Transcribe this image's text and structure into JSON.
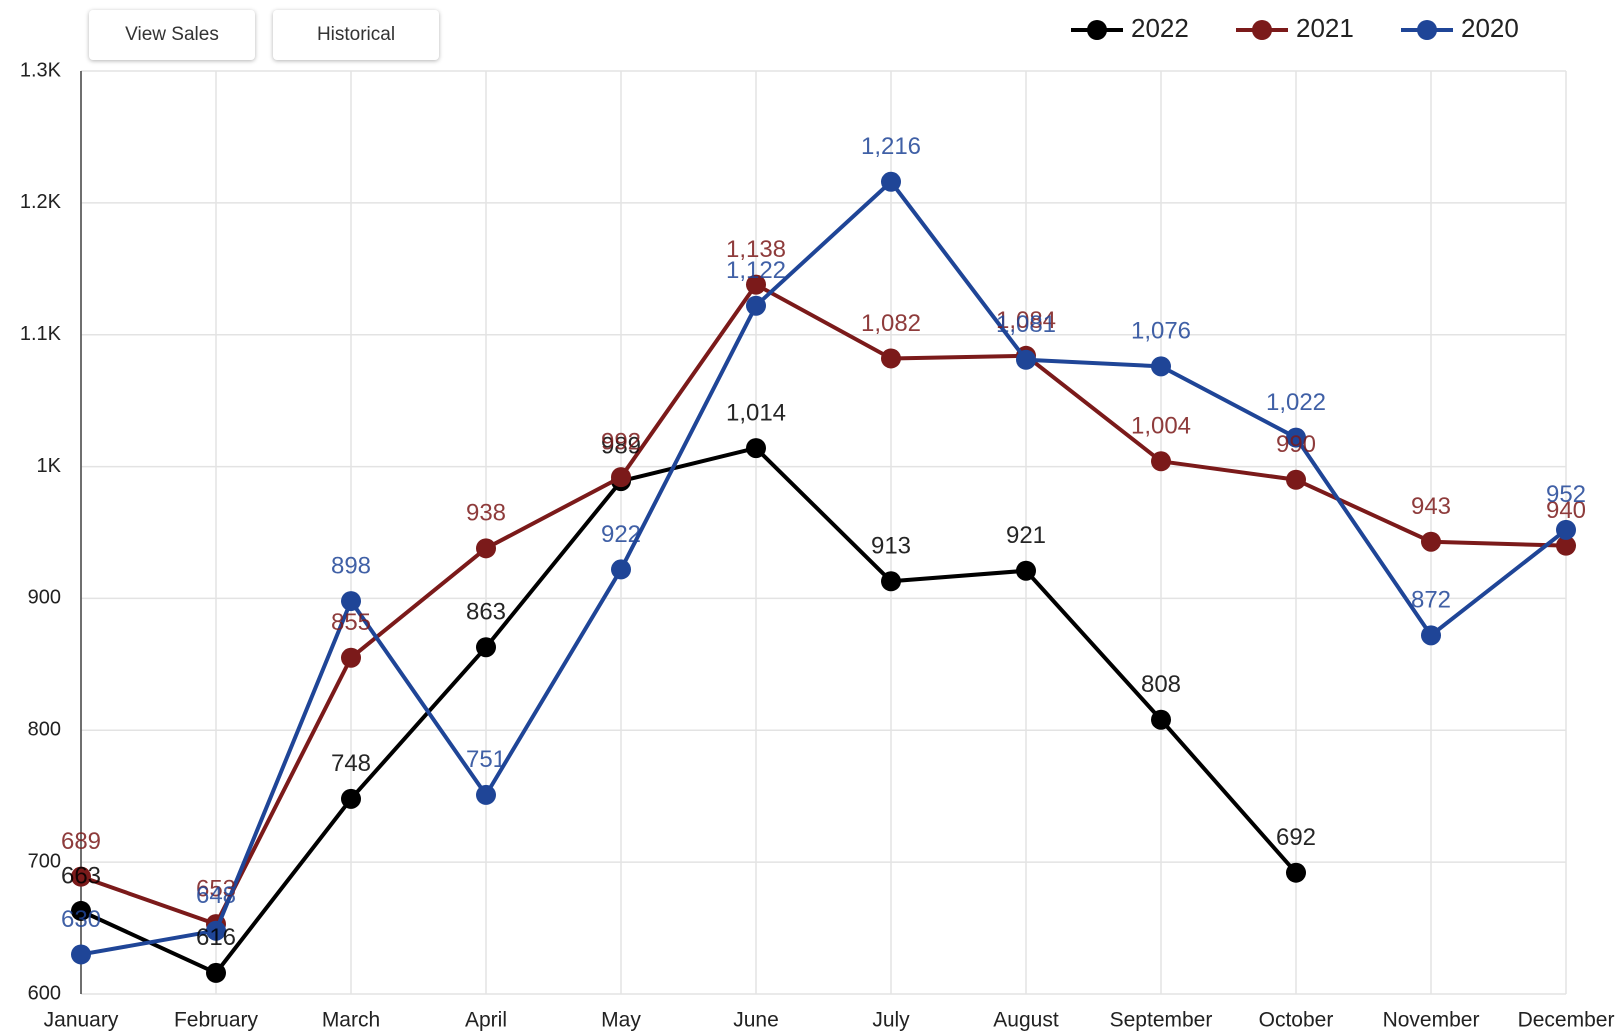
{
  "buttons": [
    "View Sales",
    "Historical"
  ],
  "chart_data": {
    "type": "line",
    "categories": [
      "January",
      "February",
      "March",
      "April",
      "May",
      "June",
      "July",
      "August",
      "September",
      "October",
      "November",
      "December"
    ],
    "series": [
      {
        "name": "2022",
        "color": "#000000",
        "values": [
          663,
          616,
          748,
          863,
          989,
          1014,
          913,
          921,
          808,
          692,
          null,
          null
        ],
        "value_labels": [
          "663",
          "616",
          "748",
          "863",
          "989",
          "1,014",
          "913",
          "921",
          "808",
          "692",
          null,
          null
        ]
      },
      {
        "name": "2021",
        "color": "#7b1a1a",
        "values": [
          689,
          653,
          855,
          938,
          992,
          1138,
          1082,
          1084,
          1004,
          990,
          943,
          940
        ],
        "value_labels": [
          "689",
          "653",
          "855",
          "938",
          "992",
          "1,138",
          "1,082",
          "1,084",
          "1,004",
          "990",
          "943",
          "940"
        ]
      },
      {
        "name": "2020",
        "color": "#1f4597",
        "values": [
          630,
          648,
          898,
          751,
          922,
          1122,
          1216,
          1081,
          1076,
          1022,
          872,
          952
        ],
        "value_labels": [
          "630",
          "648",
          "898",
          "751",
          "922",
          "1,122",
          "1,216",
          "1,081",
          "1,076",
          "1,022",
          "872",
          "952"
        ]
      }
    ],
    "ylim": [
      600,
      1300
    ],
    "yticks": [
      600,
      700,
      800,
      900,
      {
        "value": 1000,
        "label": "1K"
      },
      {
        "value": 1100,
        "label": "1.1K"
      },
      {
        "value": 1200,
        "label": "1.2K"
      },
      {
        "value": 1300,
        "label": "1.3K"
      }
    ],
    "grid": true,
    "legend": "top-right"
  }
}
